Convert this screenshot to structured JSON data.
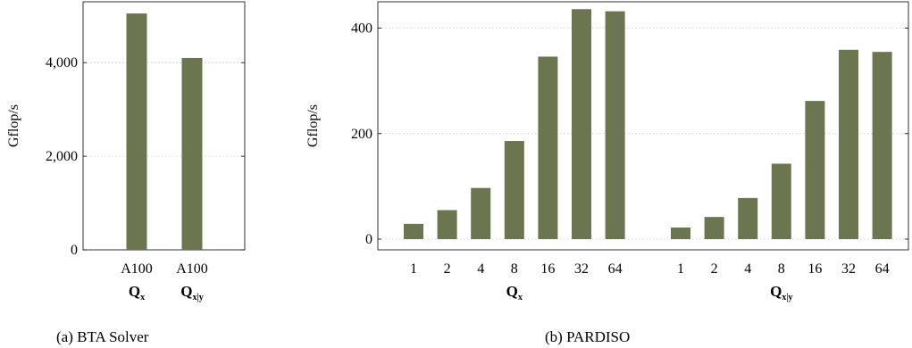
{
  "colors": {
    "bar": "#6b7550",
    "grid": "#c8c8c8",
    "axis": "#000000"
  },
  "chart_data": [
    {
      "type": "bar",
      "ylabel": "Gflop/s",
      "ylim": [
        0,
        5300
      ],
      "yticks": [
        0,
        2000,
        4000
      ],
      "ytick_labels": [
        "0",
        "2,000",
        "4,000"
      ],
      "grid": "horizontal-dotted",
      "categories": [
        "A100",
        "A100"
      ],
      "groups": [
        {
          "main": "Q",
          "sub": "x",
          "categories": [
            "A100"
          ],
          "values": [
            5050
          ]
        },
        {
          "main": "Q",
          "sub": "x|y",
          "categories": [
            "A100"
          ],
          "values": [
            4100
          ]
        }
      ],
      "caption": "(a) BTA Solver"
    },
    {
      "type": "bar",
      "ylabel": "Gflop/s",
      "ylim": [
        0,
        450
      ],
      "yticks": [
        0,
        200,
        400
      ],
      "ytick_labels": [
        "0",
        "200",
        "400"
      ],
      "grid": "horizontal-dotted",
      "groups": [
        {
          "main": "Q",
          "sub": "x",
          "categories": [
            "1",
            "2",
            "4",
            "8",
            "16",
            "32",
            "64"
          ],
          "values": [
            29,
            55,
            97,
            186,
            346,
            436,
            432
          ]
        },
        {
          "main": "Q",
          "sub": "x|y",
          "categories": [
            "1",
            "2",
            "4",
            "8",
            "16",
            "32",
            "64"
          ],
          "values": [
            22,
            42,
            78,
            143,
            262,
            359,
            355
          ]
        }
      ],
      "caption": "(b) PARDISO"
    }
  ]
}
